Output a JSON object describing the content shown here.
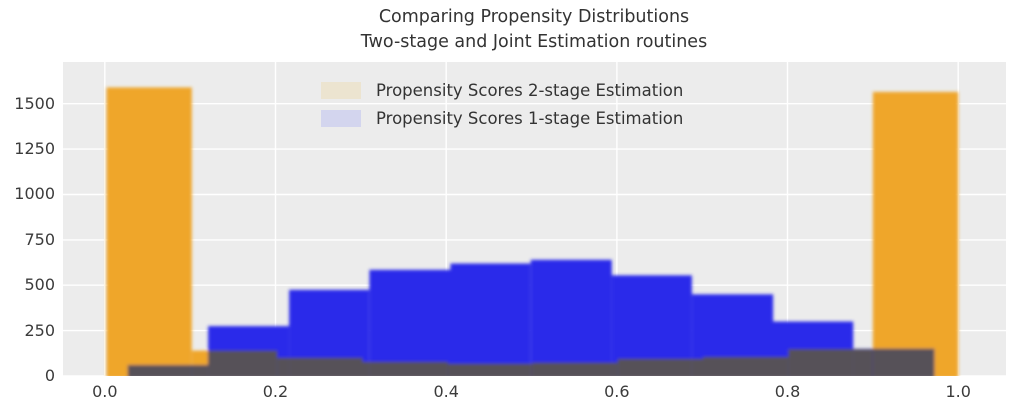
{
  "title": {
    "line1": "Comparing Propensity Distributions",
    "line2": "Two-stage and Joint Estimation routines"
  },
  "legend": {
    "items": [
      {
        "label": "Propensity Scores 2-stage Estimation",
        "swatch_color": "#ece4d0"
      },
      {
        "label": "Propensity Scores 1-stage Estimation",
        "swatch_color": "#d3d5ee"
      }
    ]
  },
  "chart_data": {
    "type": "bar",
    "subtype": "overlaid-histograms",
    "title": "Comparing Propensity Distributions Two-stage and Joint Estimation routines",
    "xlabel": "",
    "ylabel": "",
    "xlim": [
      -0.049,
      1.056
    ],
    "ylim": [
      0,
      1730
    ],
    "xticks": [
      0.0,
      0.2,
      0.4,
      0.6,
      0.8,
      1.0
    ],
    "xticklabels": [
      "0.0",
      "0.2",
      "0.4",
      "0.6",
      "0.8",
      "1.0"
    ],
    "yticks": [
      0,
      250,
      500,
      750,
      1000,
      1250,
      1500
    ],
    "yticklabels": [
      "0",
      "250",
      "500",
      "750",
      "1000",
      "1250",
      "1500"
    ],
    "grid": true,
    "background_color": "#ececec",
    "gridline_color": "#ffffff",
    "overlap_color": "#565159",
    "legend_position": "upper center",
    "series": [
      {
        "name": "Propensity Scores 2-stage Estimation",
        "color": "#efa62b",
        "bin_edges": [
          0.002,
          0.102,
          0.202,
          0.302,
          0.402,
          0.501,
          0.601,
          0.701,
          0.801,
          0.9,
          1.0
        ],
        "counts": [
          1590,
          140,
          100,
          78,
          68,
          74,
          95,
          105,
          148,
          1565
        ]
      },
      {
        "name": "Propensity Scores 1-stage Estimation",
        "color": "#2c2cea",
        "bin_edges": [
          0.027,
          0.121,
          0.216,
          0.31,
          0.405,
          0.499,
          0.594,
          0.688,
          0.783,
          0.877,
          0.972
        ],
        "counts": [
          60,
          275,
          475,
          585,
          620,
          640,
          555,
          450,
          300,
          150
        ]
      }
    ]
  }
}
